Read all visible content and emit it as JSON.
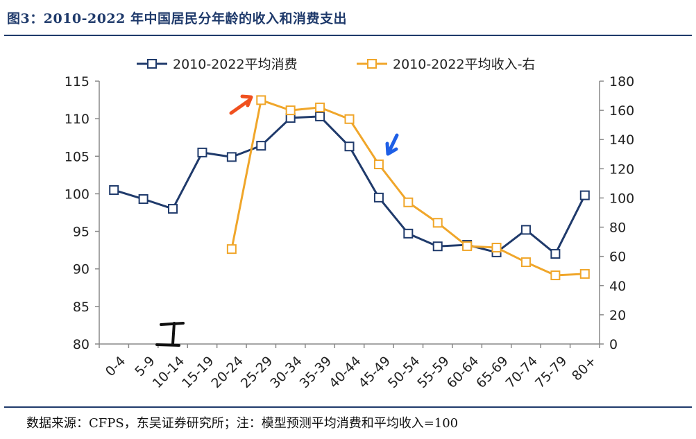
{
  "title": "图3：2010-2022 年中国居民分年龄的收入和消费支出",
  "source": "数据来源：CFPS，东吴证券研究所；注：模型预测平均消费和平均收入=100",
  "colors": {
    "consumption": "#1F3A6B",
    "income": "#F0A62A",
    "title": "#1F3A6B",
    "arrow_orange": "#F0501E",
    "arrow_blue": "#1E5FE6"
  },
  "chart_data": {
    "type": "line",
    "categories": [
      "0-4",
      "5-9",
      "10-14",
      "15-19",
      "20-24",
      "25-29",
      "30-34",
      "35-39",
      "40-44",
      "45-49",
      "50-54",
      "55-59",
      "60-64",
      "65-69",
      "70-74",
      "75-79",
      "80+"
    ],
    "y_left": {
      "range": [
        80,
        115
      ],
      "ticks": [
        "80",
        "85",
        "90",
        "95",
        "100",
        "105",
        "110",
        "115"
      ]
    },
    "y_right": {
      "range": [
        0,
        180
      ],
      "ticks": [
        "0",
        "20",
        "40",
        "60",
        "80",
        "100",
        "120",
        "140",
        "160",
        "180"
      ]
    },
    "legend_placement": "top",
    "series": [
      {
        "name": "2010-2022平均消费",
        "axis": "left",
        "values": [
          100.5,
          99.3,
          98.0,
          105.5,
          104.9,
          106.4,
          110.1,
          110.3,
          106.3,
          99.5,
          94.7,
          93.0,
          93.2,
          92.2,
          95.2,
          92.0,
          99.8
        ]
      },
      {
        "name": "2010-2022平均收入-右",
        "axis": "right",
        "values": [
          null,
          null,
          null,
          null,
          65,
          167,
          160,
          162,
          154,
          123,
          97,
          83,
          67,
          66,
          56,
          47,
          48
        ]
      }
    ]
  }
}
